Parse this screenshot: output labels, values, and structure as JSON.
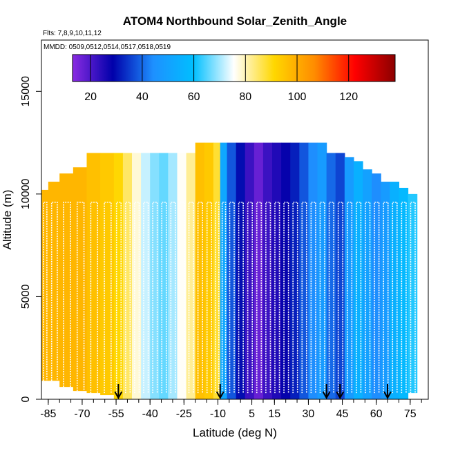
{
  "chart_data": {
    "type": "heatmap",
    "title": "ATOM4 Northbound Solar_Zenith_Angle",
    "subtitle_flights": "Flts: 7,8,9,10,11,12",
    "subtitle_dates": "MMDD: 0509,0512,0514,0517,0518,0519",
    "xlabel": "Latitude (deg N)",
    "ylabel": "Altitude (m)",
    "xlim": [
      -88,
      83
    ],
    "ylim": [
      0,
      17500
    ],
    "x_ticks": [
      -85,
      -70,
      -55,
      -40,
      -25,
      -10,
      5,
      15,
      30,
      45,
      60,
      75
    ],
    "y_ticks": [
      0,
      5000,
      10000,
      15000
    ],
    "colorbar": {
      "range": [
        13,
        138
      ],
      "ticks": [
        20,
        40,
        60,
        80,
        100,
        120
      ],
      "colors": [
        "#8a2be2",
        "#0000aa",
        "#1e90ff",
        "#00bfff",
        "#ffffff",
        "#ffd700",
        "#ff8c00",
        "#ff0000",
        "#8b0000"
      ]
    },
    "flight_markers_lat": [
      -54,
      -9,
      38,
      44,
      65
    ],
    "columns": [
      {
        "lat0": -88,
        "lat1": -85,
        "ytop": 10200,
        "ybot": 900,
        "sza": 98
      },
      {
        "lat0": -85,
        "lat1": -80,
        "ytop": 10600,
        "ybot": 900,
        "sza": 98
      },
      {
        "lat0": -80,
        "lat1": -74,
        "ytop": 11000,
        "ybot": 600,
        "sza": 98
      },
      {
        "lat0": -74,
        "lat1": -68,
        "ytop": 11300,
        "ybot": 400,
        "sza": 98
      },
      {
        "lat0": -68,
        "lat1": -62,
        "ytop": 12000,
        "ybot": 300,
        "sza": 96
      },
      {
        "lat0": -62,
        "lat1": -56,
        "ytop": 12000,
        "ybot": 200,
        "sza": 94
      },
      {
        "lat0": -56,
        "lat1": -52,
        "ytop": 12000,
        "ybot": 0,
        "sza": 91
      },
      {
        "lat0": -52,
        "lat1": -48,
        "ytop": 12000,
        "ybot": 0,
        "sza": 85
      },
      {
        "lat0": -48,
        "lat1": -44,
        "ytop": 12000,
        "ybot": 0,
        "sza": 78
      },
      {
        "lat0": -44,
        "lat1": -40,
        "ytop": 12000,
        "ybot": 0,
        "sza": 72
      },
      {
        "lat0": -40,
        "lat1": -36,
        "ytop": 12000,
        "ybot": 0,
        "sza": 68
      },
      {
        "lat0": -36,
        "lat1": -32,
        "ytop": 12000,
        "ybot": 0,
        "sza": 66
      },
      {
        "lat0": -32,
        "lat1": -28,
        "ytop": 12000,
        "ybot": 0,
        "sza": 70
      },
      {
        "lat0": -28,
        "lat1": -24,
        "ytop": 12000,
        "ybot": 0,
        "sza": 76
      },
      {
        "lat0": -24,
        "lat1": -20,
        "ytop": 12000,
        "ybot": 0,
        "sza": 82
      },
      {
        "lat0": -20,
        "lat1": -16,
        "ytop": 12500,
        "ybot": 0,
        "sza": 96
      },
      {
        "lat0": -16,
        "lat1": -12,
        "ytop": 12500,
        "ybot": 0,
        "sza": 94
      },
      {
        "lat0": -12,
        "lat1": -9,
        "ytop": 12500,
        "ybot": 0,
        "sza": 88
      },
      {
        "lat0": -9,
        "lat1": -6,
        "ytop": 12500,
        "ybot": 0,
        "sza": 52
      },
      {
        "lat0": -6,
        "lat1": -2,
        "ytop": 12500,
        "ybot": 0,
        "sza": 38
      },
      {
        "lat0": -2,
        "lat1": 2,
        "ytop": 12500,
        "ybot": 0,
        "sza": 30
      },
      {
        "lat0": 2,
        "lat1": 6,
        "ytop": 12500,
        "ybot": 0,
        "sza": 22
      },
      {
        "lat0": 6,
        "lat1": 10,
        "ytop": 12500,
        "ybot": 0,
        "sza": 17
      },
      {
        "lat0": 10,
        "lat1": 14,
        "ytop": 12500,
        "ybot": 0,
        "sza": 22
      },
      {
        "lat0": 14,
        "lat1": 18,
        "ytop": 12500,
        "ybot": 0,
        "sza": 25
      },
      {
        "lat0": 18,
        "lat1": 22,
        "ytop": 12500,
        "ybot": 0,
        "sza": 28
      },
      {
        "lat0": 22,
        "lat1": 26,
        "ytop": 12500,
        "ybot": 0,
        "sza": 32
      },
      {
        "lat0": 26,
        "lat1": 30,
        "ytop": 12500,
        "ybot": 0,
        "sza": 38
      },
      {
        "lat0": 30,
        "lat1": 34,
        "ytop": 12500,
        "ybot": 0,
        "sza": 44
      },
      {
        "lat0": 34,
        "lat1": 38,
        "ytop": 12500,
        "ybot": 0,
        "sza": 48
      },
      {
        "lat0": 38,
        "lat1": 42,
        "ytop": 12000,
        "ybot": 0,
        "sza": 40
      },
      {
        "lat0": 42,
        "lat1": 46,
        "ytop": 12000,
        "ybot": 0,
        "sza": 36
      },
      {
        "lat0": 46,
        "lat1": 50,
        "ytop": 11800,
        "ybot": 0,
        "sza": 48
      },
      {
        "lat0": 50,
        "lat1": 54,
        "ytop": 11600,
        "ybot": 0,
        "sza": 55
      },
      {
        "lat0": 54,
        "lat1": 58,
        "ytop": 11200,
        "ybot": 0,
        "sza": 50
      },
      {
        "lat0": 58,
        "lat1": 62,
        "ytop": 11000,
        "ybot": 0,
        "sza": 44
      },
      {
        "lat0": 62,
        "lat1": 66,
        "ytop": 10600,
        "ybot": 0,
        "sza": 48
      },
      {
        "lat0": 66,
        "lat1": 70,
        "ytop": 10600,
        "ybot": 0,
        "sza": 55
      },
      {
        "lat0": 70,
        "lat1": 74,
        "ytop": 10300,
        "ybot": 0,
        "sza": 58
      },
      {
        "lat0": 74,
        "lat1": 78,
        "ytop": 10000,
        "ybot": 300,
        "sza": 62
      }
    ]
  }
}
